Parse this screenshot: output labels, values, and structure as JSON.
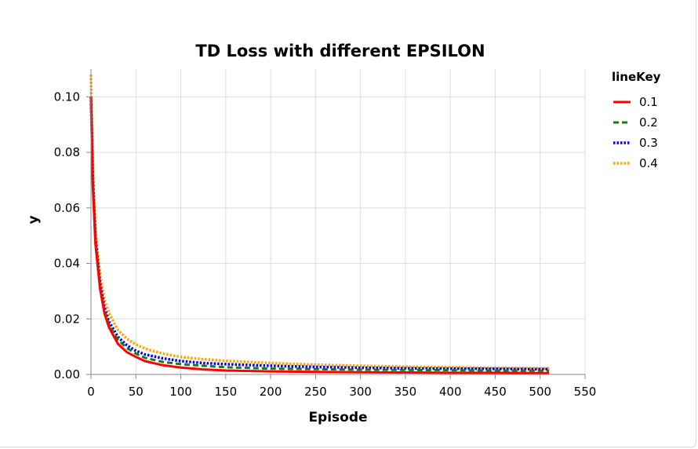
{
  "chart_data": {
    "type": "line",
    "title": "TD Loss with different EPSILON",
    "xlabel": "Episode",
    "ylabel": "y",
    "xlim": [
      0,
      550
    ],
    "ylim": [
      0,
      0.11
    ],
    "x_ticks": [
      "0",
      "50",
      "100",
      "150",
      "200",
      "250",
      "300",
      "350",
      "400",
      "450",
      "500",
      "550"
    ],
    "y_ticks": [
      "0.00",
      "0.02",
      "0.04",
      "0.06",
      "0.08",
      "0.10"
    ],
    "grid": true,
    "legend": {
      "title": "lineKey",
      "placement": "right"
    },
    "x": [
      0,
      2,
      5,
      10,
      15,
      20,
      30,
      40,
      50,
      60,
      80,
      100,
      125,
      150,
      200,
      250,
      300,
      350,
      400,
      450,
      500,
      510
    ],
    "series": [
      {
        "name": "0.1",
        "color": "#ff0000",
        "dash": "solid",
        "values": [
          0.1,
          0.068,
          0.047,
          0.031,
          0.022,
          0.017,
          0.011,
          0.008,
          0.0063,
          0.0048,
          0.0033,
          0.0025,
          0.0018,
          0.0014,
          0.0011,
          0.0009,
          0.0008,
          0.0007,
          0.0006,
          0.0006,
          0.0005,
          0.0005
        ]
      },
      {
        "name": "0.2",
        "color": "#1a7a1a",
        "dash": "dashed",
        "values": [
          0.1,
          0.07,
          0.048,
          0.032,
          0.023,
          0.018,
          0.0125,
          0.0095,
          0.0075,
          0.006,
          0.0045,
          0.0037,
          0.0031,
          0.0026,
          0.0021,
          0.0019,
          0.0017,
          0.0016,
          0.0015,
          0.0014,
          0.0013,
          0.0013
        ]
      },
      {
        "name": "0.3",
        "color": "#0000ff",
        "dash": "dotted",
        "values": [
          0.1,
          0.071,
          0.049,
          0.033,
          0.024,
          0.019,
          0.0135,
          0.0105,
          0.0085,
          0.0072,
          0.0058,
          0.0048,
          0.0041,
          0.0037,
          0.0031,
          0.0027,
          0.0024,
          0.0022,
          0.0021,
          0.002,
          0.0019,
          0.0019
        ]
      },
      {
        "name": "0.4",
        "color": "#ffa500",
        "dash": "dotted",
        "values": [
          0.108,
          0.075,
          0.052,
          0.036,
          0.027,
          0.022,
          0.016,
          0.0128,
          0.0108,
          0.0093,
          0.0075,
          0.0063,
          0.0055,
          0.0049,
          0.0041,
          0.0035,
          0.0031,
          0.0028,
          0.0026,
          0.0024,
          0.0022,
          0.0022
        ]
      }
    ]
  }
}
